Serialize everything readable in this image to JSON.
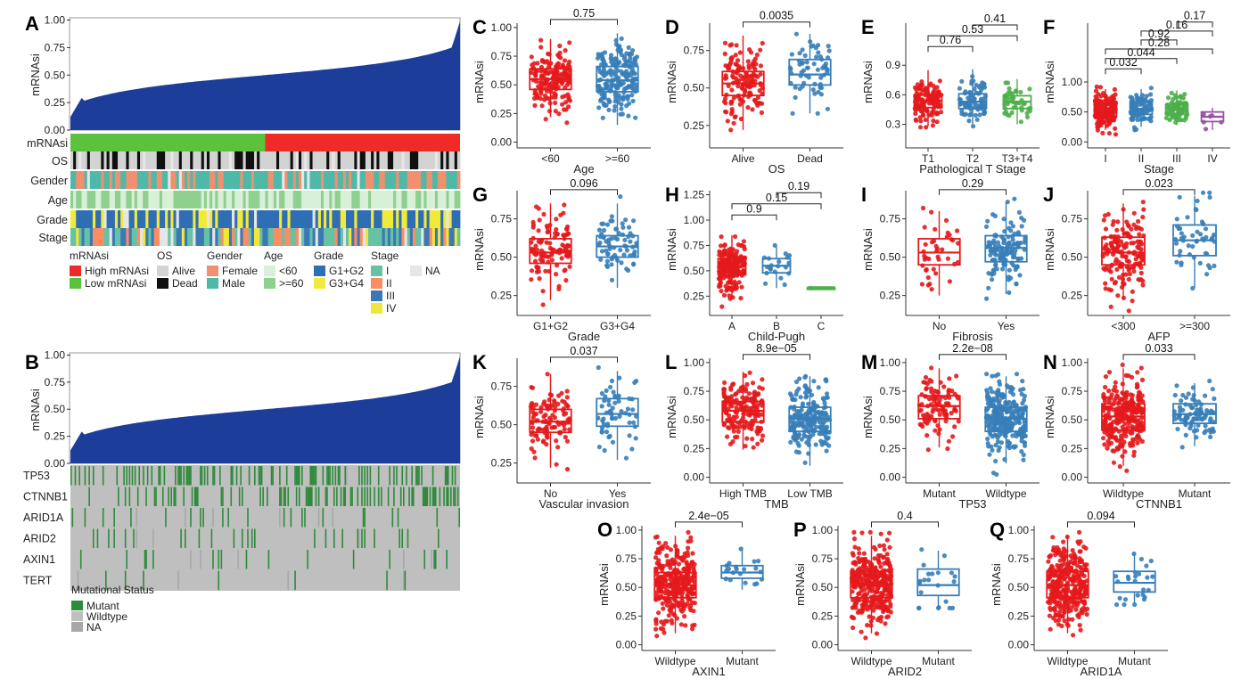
{
  "colors": {
    "red": "#e41a1c",
    "blue": "#377eb8",
    "green": "#4daf4a",
    "purple": "#984ea3",
    "navy": "#1d3d9b",
    "track_green": "#5cc13d",
    "track_red": "#ef2a27",
    "alive": "#d3d3d3",
    "dead": "#101010",
    "female": "#f0906f",
    "male": "#4fb9a8",
    "age_lt60": "#d8efd8",
    "age_ge60": "#8fd08f",
    "g12": "#2f6eb5",
    "g34": "#f2ea3a",
    "stage1": "#66c2a5",
    "stage2": "#fc8d62",
    "stage3": "#3a78b6",
    "stage4": "#f0e63c",
    "na": "#e6e6e6",
    "mutant": "#2e8b3b",
    "wildtype": "#bfbfbf",
    "na_mut": "#a8a8a8"
  },
  "panel_a": {
    "label": "A",
    "ylabel": "mRNAsi",
    "yticks": [
      "0.00",
      "0.25",
      "0.50",
      "0.75",
      "1.00"
    ],
    "track_labels": [
      "mRNAsi",
      "OS",
      "Gender",
      "Age",
      "Grade",
      "Stage"
    ],
    "legend": {
      "mrnasi": {
        "title": "mRNAsi",
        "items": [
          "High mRNAsi",
          "Low mRNAsi"
        ]
      },
      "os": {
        "title": "OS",
        "items": [
          "Alive",
          "Dead"
        ]
      },
      "gender": {
        "title": "Gender",
        "items": [
          "Female",
          "Male"
        ]
      },
      "age": {
        "title": "Age",
        "items": [
          "<60",
          ">=60"
        ]
      },
      "grade": {
        "title": "Grade",
        "items": [
          "G1+G2",
          "G3+G4"
        ]
      },
      "stage": {
        "title": "Stage",
        "items": [
          "I",
          "II",
          "III",
          "IV"
        ]
      },
      "na": "NA"
    }
  },
  "panel_b": {
    "label": "B",
    "ylabel": "mRNAsi",
    "yticks": [
      "0.00",
      "0.25",
      "0.50",
      "0.75",
      "1.00"
    ],
    "genes": [
      "TP53",
      "CTNNB1",
      "ARID1A",
      "ARID2",
      "AXIN1",
      "TERT"
    ],
    "legend_title": "Mutational Status",
    "legend_items": [
      "Mutant",
      "Wildtype",
      "NA"
    ]
  },
  "chart_data": [
    {
      "id": "C",
      "type": "box",
      "xlabel": "Age",
      "ylabel": "mRNAsi",
      "categories": [
        "<60",
        ">=60"
      ],
      "yticks": [
        0.0,
        0.25,
        0.5,
        0.75,
        1.0
      ],
      "ylim": [
        -0.05,
        1.1
      ],
      "boxes": [
        {
          "q1": 0.46,
          "median": 0.55,
          "q3": 0.64,
          "lo": 0.22,
          "hi": 0.9,
          "min": 0.05,
          "max": 0.98,
          "color": "red",
          "n": 170
        },
        {
          "q1": 0.44,
          "median": 0.54,
          "q3": 0.66,
          "lo": 0.15,
          "hi": 0.95,
          "min": -0.02,
          "max": 0.98,
          "color": "blue",
          "n": 200
        }
      ],
      "comparisons": [
        {
          "a": 0,
          "b": 1,
          "label": "0.75",
          "y": 1.07
        }
      ]
    },
    {
      "id": "D",
      "type": "box",
      "xlabel": "OS",
      "ylabel": "mRNAsi",
      "categories": [
        "Alive",
        "Dead"
      ],
      "yticks": [
        0.25,
        0.5,
        0.75
      ],
      "ylim": [
        0.1,
        0.98
      ],
      "boxes": [
        {
          "q1": 0.45,
          "median": 0.53,
          "q3": 0.61,
          "lo": 0.22,
          "hi": 0.85,
          "min": 0.12,
          "max": 0.86,
          "color": "red",
          "n": 140
        },
        {
          "q1": 0.52,
          "median": 0.59,
          "q3": 0.69,
          "lo": 0.33,
          "hi": 0.86,
          "min": 0.33,
          "max": 0.86,
          "color": "blue",
          "n": 60
        }
      ],
      "comparisons": [
        {
          "a": 0,
          "b": 1,
          "label": "0.0035",
          "y": 0.94
        }
      ]
    },
    {
      "id": "E",
      "type": "box",
      "xlabel": "Pathological T Stage",
      "ylabel": "mRNAsi",
      "categories": [
        "T1",
        "T2",
        "T3+T4"
      ],
      "yticks": [
        0.3,
        0.6,
        0.9
      ],
      "ylim": [
        0.06,
        1.4
      ],
      "boxes": [
        {
          "q1": 0.47,
          "median": 0.54,
          "q3": 0.6,
          "lo": 0.28,
          "hi": 0.85,
          "min": 0.27,
          "max": 0.88,
          "color": "red",
          "n": 120
        },
        {
          "q1": 0.46,
          "median": 0.53,
          "q3": 0.61,
          "lo": 0.3,
          "hi": 0.86,
          "min": 0.28,
          "max": 0.87,
          "color": "blue",
          "n": 80
        },
        {
          "q1": 0.46,
          "median": 0.53,
          "q3": 0.59,
          "lo": 0.3,
          "hi": 0.76,
          "min": 0.11,
          "max": 0.77,
          "color": "green",
          "n": 45
        }
      ],
      "comparisons": [
        {
          "a": 0,
          "b": 1,
          "label": "0.76",
          "y": 1.09
        },
        {
          "a": 0,
          "b": 2,
          "label": "0.53",
          "y": 1.2
        },
        {
          "a": 1,
          "b": 2,
          "label": "0.41",
          "y": 1.31
        }
      ]
    },
    {
      "id": "F",
      "type": "box",
      "xlabel": "Stage",
      "ylabel": "mRNAsi",
      "categories": [
        "I",
        "II",
        "III",
        "IV"
      ],
      "yticks": [
        0.0,
        0.5,
        1.0
      ],
      "ylim": [
        -0.1,
        2.1
      ],
      "boxes": [
        {
          "q1": 0.41,
          "median": 0.51,
          "q3": 0.62,
          "lo": 0.2,
          "hi": 0.88,
          "min": 0.03,
          "max": 0.92,
          "color": "red",
          "n": 170
        },
        {
          "q1": 0.46,
          "median": 0.55,
          "q3": 0.66,
          "lo": 0.25,
          "hi": 0.88,
          "min": 0.2,
          "max": 0.9,
          "color": "blue",
          "n": 90
        },
        {
          "q1": 0.46,
          "median": 0.55,
          "q3": 0.63,
          "lo": 0.28,
          "hi": 0.86,
          "min": 0.26,
          "max": 0.86,
          "color": "green",
          "n": 80
        },
        {
          "q1": 0.34,
          "median": 0.42,
          "q3": 0.5,
          "lo": 0.2,
          "hi": 0.57,
          "min": 0.2,
          "max": 0.57,
          "color": "purple",
          "n": 6
        }
      ],
      "comparisons": [
        {
          "a": 0,
          "b": 1,
          "label": "0.032",
          "y": 1.22
        },
        {
          "a": 0,
          "b": 2,
          "label": "0.044",
          "y": 1.39
        },
        {
          "a": 0,
          "b": 3,
          "label": "0.28",
          "y": 1.55
        },
        {
          "a": 1,
          "b": 2,
          "label": "0.92",
          "y": 1.7
        },
        {
          "a": 1,
          "b": 3,
          "label": "0.16",
          "y": 1.85
        },
        {
          "a": 2,
          "b": 3,
          "label": "0.17",
          "y": 2.0
        }
      ]
    },
    {
      "id": "G",
      "type": "box",
      "xlabel": "Grade",
      "ylabel": "mRNAsi",
      "categories": [
        "G1+G2",
        "G3+G4"
      ],
      "yticks": [
        0.25,
        0.5,
        0.75
      ],
      "ylim": [
        0.12,
        0.98
      ],
      "boxes": [
        {
          "q1": 0.46,
          "median": 0.53,
          "q3": 0.62,
          "lo": 0.22,
          "hi": 0.85,
          "min": 0.19,
          "max": 0.86,
          "color": "red",
          "n": 110
        },
        {
          "q1": 0.5,
          "median": 0.57,
          "q3": 0.64,
          "lo": 0.3,
          "hi": 0.85,
          "min": 0.25,
          "max": 0.93,
          "color": "blue",
          "n": 70
        }
      ],
      "comparisons": [
        {
          "a": 0,
          "b": 1,
          "label": "0.096",
          "y": 0.94
        }
      ]
    },
    {
      "id": "H",
      "type": "box",
      "xlabel": "Child-Pugh",
      "ylabel": "mRNAsi",
      "categories": [
        "A",
        "B",
        "C"
      ],
      "yticks": [
        0.25,
        0.5,
        0.75,
        1.0,
        1.25
      ],
      "ylim": [
        0.06,
        1.36
      ],
      "boxes": [
        {
          "q1": 0.46,
          "median": 0.54,
          "q3": 0.62,
          "lo": 0.22,
          "hi": 0.85,
          "min": 0.1,
          "max": 0.98,
          "color": "red",
          "n": 210
        },
        {
          "q1": 0.48,
          "median": 0.55,
          "q3": 0.62,
          "lo": 0.33,
          "hi": 0.74,
          "min": 0.3,
          "max": 0.75,
          "color": "blue",
          "n": 20
        },
        {
          "q1": 0.33,
          "median": 0.33,
          "q3": 0.33,
          "lo": 0.33,
          "hi": 0.33,
          "min": 0.33,
          "max": 0.33,
          "color": "green",
          "n": 1
        }
      ],
      "comparisons": [
        {
          "a": 0,
          "b": 1,
          "label": "0.9",
          "y": 1.05
        },
        {
          "a": 0,
          "b": 2,
          "label": "0.15",
          "y": 1.16
        },
        {
          "a": 1,
          "b": 2,
          "label": "0.19",
          "y": 1.27
        }
      ]
    },
    {
      "id": "I",
      "type": "box",
      "xlabel": "Fibrosis",
      "ylabel": "mRNAsi",
      "categories": [
        "No",
        "Yes"
      ],
      "yticks": [
        0.25,
        0.5,
        0.75
      ],
      "ylim": [
        0.12,
        0.98
      ],
      "boxes": [
        {
          "q1": 0.45,
          "median": 0.53,
          "q3": 0.62,
          "lo": 0.25,
          "hi": 0.8,
          "min": 0.14,
          "max": 0.82,
          "color": "red",
          "n": 40
        },
        {
          "q1": 0.47,
          "median": 0.56,
          "q3": 0.64,
          "lo": 0.26,
          "hi": 0.86,
          "min": 0.23,
          "max": 0.88,
          "color": "blue",
          "n": 130
        }
      ],
      "comparisons": [
        {
          "a": 0,
          "b": 1,
          "label": "0.29",
          "y": 0.94
        }
      ]
    },
    {
      "id": "J",
      "type": "box",
      "xlabel": "AFP",
      "ylabel": "mRNAsi",
      "categories": [
        "<300",
        ">=300"
      ],
      "yticks": [
        0.25,
        0.5,
        0.75
      ],
      "ylim": [
        0.12,
        0.98
      ],
      "boxes": [
        {
          "q1": 0.45,
          "median": 0.53,
          "q3": 0.63,
          "lo": 0.22,
          "hi": 0.85,
          "min": 0.15,
          "max": 0.86,
          "color": "red",
          "n": 160
        },
        {
          "q1": 0.51,
          "median": 0.61,
          "q3": 0.71,
          "lo": 0.3,
          "hi": 0.9,
          "min": 0.24,
          "max": 0.92,
          "color": "blue",
          "n": 50
        }
      ],
      "comparisons": [
        {
          "a": 0,
          "b": 1,
          "label": "0.023",
          "y": 0.94
        }
      ]
    },
    {
      "id": "K",
      "type": "box",
      "xlabel": "Vascular invasion",
      "ylabel": "mRNAsi",
      "categories": [
        "No",
        "Yes"
      ],
      "yticks": [
        0.25,
        0.5,
        0.75
      ],
      "ylim": [
        0.12,
        0.98
      ],
      "boxes": [
        {
          "q1": 0.45,
          "median": 0.52,
          "q3": 0.6,
          "lo": 0.22,
          "hi": 0.83,
          "min": 0.19,
          "max": 0.83,
          "color": "red",
          "n": 110
        },
        {
          "q1": 0.49,
          "median": 0.57,
          "q3": 0.67,
          "lo": 0.27,
          "hi": 0.85,
          "min": 0.13,
          "max": 0.9,
          "color": "blue",
          "n": 60
        }
      ],
      "comparisons": [
        {
          "a": 0,
          "b": 1,
          "label": "0.037",
          "y": 0.94
        }
      ]
    },
    {
      "id": "L",
      "type": "box",
      "xlabel": "TMB",
      "ylabel": "mRNAsi",
      "categories": [
        "High TMB",
        "Low TMB"
      ],
      "yticks": [
        0.0,
        0.25,
        0.5,
        0.75,
        1.0
      ],
      "ylim": [
        -0.05,
        1.1
      ],
      "boxes": [
        {
          "q1": 0.48,
          "median": 0.58,
          "q3": 0.66,
          "lo": 0.24,
          "hi": 0.92,
          "min": 0.02,
          "max": 0.98,
          "color": "red",
          "n": 170
        },
        {
          "q1": 0.4,
          "median": 0.51,
          "q3": 0.61,
          "lo": 0.1,
          "hi": 0.88,
          "min": 0.0,
          "max": 0.9,
          "color": "blue",
          "n": 200
        }
      ],
      "comparisons": [
        {
          "a": 0,
          "b": 1,
          "label": "8.9e−05",
          "y": 1.07
        }
      ]
    },
    {
      "id": "M",
      "type": "box",
      "xlabel": "TP53",
      "ylabel": "mRNAsi",
      "categories": [
        "Mutant",
        "Wildtype"
      ],
      "yticks": [
        0.0,
        0.25,
        0.5,
        0.75,
        1.0
      ],
      "ylim": [
        -0.05,
        1.1
      ],
      "boxes": [
        {
          "q1": 0.51,
          "median": 0.62,
          "q3": 0.71,
          "lo": 0.26,
          "hi": 0.95,
          "min": 0.24,
          "max": 0.98,
          "color": "red",
          "n": 100
        },
        {
          "q1": 0.4,
          "median": 0.51,
          "q3": 0.61,
          "lo": 0.12,
          "hi": 0.88,
          "min": 0.0,
          "max": 0.9,
          "color": "blue",
          "n": 270
        }
      ],
      "comparisons": [
        {
          "a": 0,
          "b": 1,
          "label": "2.2e−08",
          "y": 1.07
        }
      ]
    },
    {
      "id": "N",
      "type": "box",
      "xlabel": "CTNNB1",
      "ylabel": "mRNAsi",
      "categories": [
        "Wildtype",
        "Mutant"
      ],
      "yticks": [
        0.0,
        0.25,
        0.5,
        0.75,
        1.0
      ],
      "ylim": [
        -0.05,
        1.1
      ],
      "boxes": [
        {
          "q1": 0.41,
          "median": 0.53,
          "q3": 0.64,
          "lo": 0.1,
          "hi": 0.95,
          "min": 0.0,
          "max": 0.98,
          "color": "red",
          "n": 280
        },
        {
          "q1": 0.47,
          "median": 0.55,
          "q3": 0.64,
          "lo": 0.27,
          "hi": 0.82,
          "min": 0.25,
          "max": 0.84,
          "color": "blue",
          "n": 90
        }
      ],
      "comparisons": [
        {
          "a": 0,
          "b": 1,
          "label": "0.033",
          "y": 1.07
        }
      ]
    },
    {
      "id": "O",
      "type": "box",
      "xlabel": "AXIN1",
      "ylabel": "mRNAsi",
      "categories": [
        "Wildtype",
        "Mutant"
      ],
      "yticks": [
        0.0,
        0.25,
        0.5,
        0.75,
        1.0
      ],
      "ylim": [
        -0.05,
        1.1
      ],
      "boxes": [
        {
          "q1": 0.41,
          "median": 0.52,
          "q3": 0.63,
          "lo": 0.1,
          "hi": 0.95,
          "min": 0.0,
          "max": 0.98,
          "color": "red",
          "n": 330
        },
        {
          "q1": 0.58,
          "median": 0.63,
          "q3": 0.69,
          "lo": 0.48,
          "hi": 0.85,
          "min": 0.45,
          "max": 0.87,
          "color": "blue",
          "n": 20
        }
      ],
      "comparisons": [
        {
          "a": 0,
          "b": 1,
          "label": "2.4e−05",
          "y": 1.07
        }
      ]
    },
    {
      "id": "P",
      "type": "box",
      "xlabel": "ARID2",
      "ylabel": "mRNAsi",
      "categories": [
        "Wildtype",
        "Mutant"
      ],
      "yticks": [
        0.0,
        0.25,
        0.5,
        0.75,
        1.0
      ],
      "ylim": [
        -0.05,
        1.1
      ],
      "boxes": [
        {
          "q1": 0.41,
          "median": 0.53,
          "q3": 0.64,
          "lo": 0.1,
          "hi": 0.95,
          "min": 0.0,
          "max": 0.98,
          "color": "red",
          "n": 330
        },
        {
          "q1": 0.43,
          "median": 0.52,
          "q3": 0.66,
          "lo": 0.33,
          "hi": 0.82,
          "min": 0.32,
          "max": 0.83,
          "color": "blue",
          "n": 22
        }
      ],
      "comparisons": [
        {
          "a": 0,
          "b": 1,
          "label": "0.4",
          "y": 1.07
        }
      ]
    },
    {
      "id": "Q",
      "type": "box",
      "xlabel": "ARID1A",
      "ylabel": "mRNAsi",
      "categories": [
        "Wildtype",
        "Mutant"
      ],
      "yticks": [
        0.0,
        0.25,
        0.5,
        0.75,
        1.0
      ],
      "ylim": [
        -0.05,
        1.1
      ],
      "boxes": [
        {
          "q1": 0.41,
          "median": 0.52,
          "q3": 0.64,
          "lo": 0.1,
          "hi": 0.95,
          "min": 0.0,
          "max": 0.98,
          "color": "red",
          "n": 330
        },
        {
          "q1": 0.46,
          "median": 0.54,
          "q3": 0.64,
          "lo": 0.36,
          "hi": 0.8,
          "min": 0.35,
          "max": 0.82,
          "color": "blue",
          "n": 25
        }
      ],
      "comparisons": [
        {
          "a": 0,
          "b": 1,
          "label": "0.094",
          "y": 1.07
        }
      ]
    }
  ]
}
